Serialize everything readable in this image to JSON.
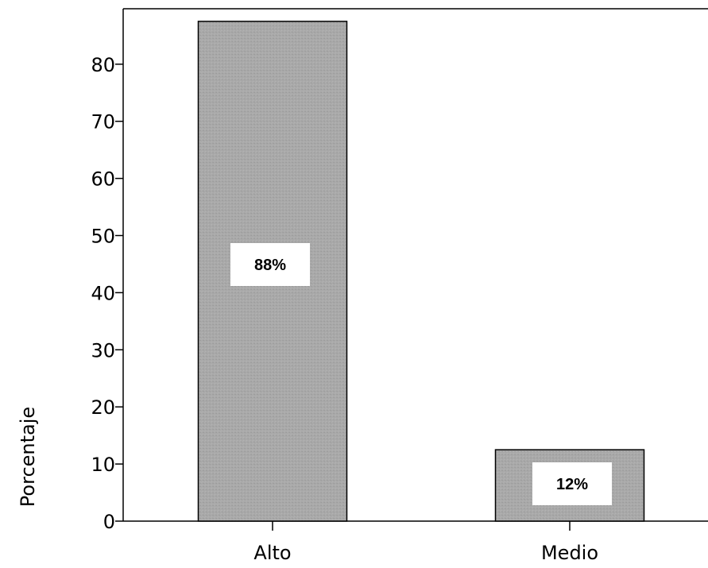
{
  "chart_data": {
    "type": "bar",
    "categories": [
      "Alto",
      "Medio"
    ],
    "values": [
      87.5,
      12.5
    ],
    "data_labels": [
      "88%",
      "12%"
    ],
    "ylabel": "Porcentaje",
    "ylim": [
      0,
      90
    ],
    "yticks": [
      0,
      10,
      20,
      30,
      40,
      50,
      60,
      70,
      80
    ],
    "bar_color": "#a9a9a9",
    "grid": false,
    "legend": "none"
  }
}
